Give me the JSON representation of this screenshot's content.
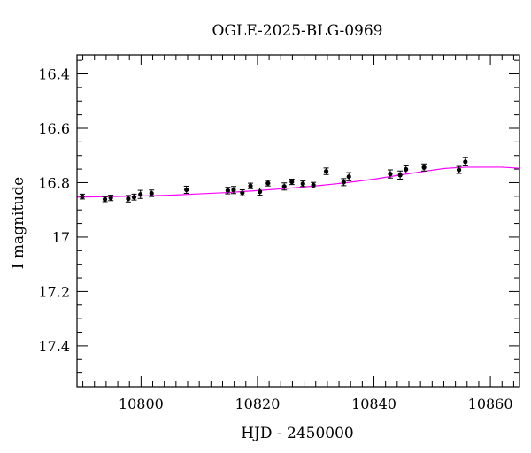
{
  "chart_data": {
    "type": "scatter",
    "title": "OGLE-2025-BLG-0969",
    "xlabel": "HJD - 2450000",
    "ylabel": "I magnitude",
    "xlim": [
      10789,
      10865
    ],
    "ylim": [
      17.55,
      16.33
    ],
    "y_inverted": true,
    "x_ticks": [
      10800,
      10820,
      10840,
      10860
    ],
    "x_tick_labels": [
      "10800",
      "10820",
      "10840",
      "10860"
    ],
    "y_ticks": [
      16.4,
      16.6,
      16.8,
      17.0,
      17.2,
      17.4
    ],
    "y_tick_labels": [
      "16.4",
      "16.6",
      "16.8",
      "17",
      "17.2",
      "17.4"
    ],
    "grid": false,
    "colors": {
      "points": "#000000",
      "model": "#ff00ff"
    },
    "series": [
      {
        "kind": "data",
        "x": [
          10789.9,
          10793.8,
          10794.8,
          10797.8,
          10798.8,
          10799.9,
          10801.8,
          10807.8,
          10814.9,
          10815.9,
          10817.4,
          10818.8,
          10820.4,
          10821.8,
          10824.6,
          10825.9,
          10827.8,
          10829.6,
          10831.8,
          10834.8,
          10835.7,
          10842.8,
          10844.5,
          10845.5,
          10848.6,
          10854.6,
          10855.7
        ],
        "y": [
          16.851,
          16.861,
          16.856,
          16.859,
          16.853,
          16.843,
          16.839,
          16.826,
          16.829,
          16.827,
          16.837,
          16.812,
          16.833,
          16.802,
          16.814,
          16.797,
          16.804,
          16.809,
          16.758,
          16.798,
          16.778,
          16.768,
          16.772,
          16.751,
          16.744,
          16.753,
          16.723
        ],
        "err": [
          0.009,
          0.009,
          0.01,
          0.012,
          0.011,
          0.015,
          0.012,
          0.013,
          0.012,
          0.013,
          0.011,
          0.01,
          0.013,
          0.01,
          0.013,
          0.01,
          0.01,
          0.01,
          0.012,
          0.013,
          0.015,
          0.015,
          0.015,
          0.013,
          0.013,
          0.013,
          0.015
        ]
      },
      {
        "kind": "model",
        "x": [
          10789,
          10795,
          10800,
          10805,
          10810,
          10815,
          10820,
          10825,
          10830,
          10835,
          10840,
          10845,
          10850,
          10852,
          10854,
          10856,
          10858,
          10860,
          10862,
          10865
        ],
        "y": [
          16.853,
          16.851,
          16.849,
          16.846,
          16.841,
          16.836,
          16.829,
          16.821,
          16.812,
          16.801,
          16.787,
          16.77,
          16.754,
          16.748,
          16.745,
          16.743,
          16.743,
          16.743,
          16.743,
          16.747
        ]
      }
    ]
  }
}
